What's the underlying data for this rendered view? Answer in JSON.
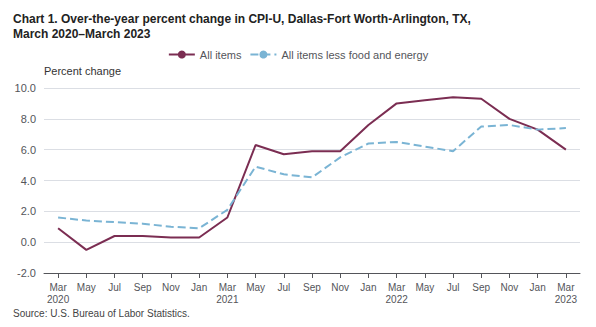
{
  "chart_data": {
    "type": "line",
    "title": "Chart 1. Over-the-year percent change in CPI-U, Dallas-Fort Worth-Arlington, TX,\nMarch 2020–March 2023",
    "ylabel": "Percent change",
    "source": "Source: U.S. Bureau of Labor Statistics.",
    "categories": [
      "Mar\n2020",
      "May",
      "Jul",
      "Sep",
      "Nov",
      "Jan",
      "Mar\n2021",
      "May",
      "Jul",
      "Sep",
      "Nov",
      "Jan",
      "Mar\n2022",
      "May",
      "Jul",
      "Sep",
      "Nov",
      "Jan",
      "Mar\n2023"
    ],
    "series": [
      {
        "name": "All items",
        "color": "#7b2d52",
        "line_style": "solid",
        "values": [
          0.9,
          -0.5,
          0.4,
          0.4,
          0.3,
          0.3,
          1.6,
          6.3,
          5.7,
          5.9,
          5.9,
          7.6,
          9.0,
          9.2,
          9.4,
          9.3,
          8.0,
          7.3,
          6.0
        ]
      },
      {
        "name": "All items less food and energy",
        "color": "#7ab4d4",
        "line_style": "dashed",
        "values": [
          1.6,
          1.4,
          1.3,
          1.2,
          1.0,
          0.9,
          2.1,
          4.9,
          4.4,
          4.2,
          5.5,
          6.4,
          6.5,
          6.2,
          5.9,
          7.5,
          7.6,
          7.3,
          7.4
        ]
      }
    ],
    "ylim": [
      -2.0,
      10.0
    ],
    "yticks": [
      {
        "value": -2.0,
        "label": "-2.0"
      },
      {
        "value": 0.0,
        "label": "0.0"
      },
      {
        "value": 2.0,
        "label": "2.0"
      },
      {
        "value": 4.0,
        "label": "4.0"
      },
      {
        "value": 6.0,
        "label": "6.0"
      },
      {
        "value": 8.0,
        "label": "8.0"
      },
      {
        "value": 10.0,
        "label": "10.0"
      }
    ],
    "grid": true,
    "legend": "top"
  }
}
